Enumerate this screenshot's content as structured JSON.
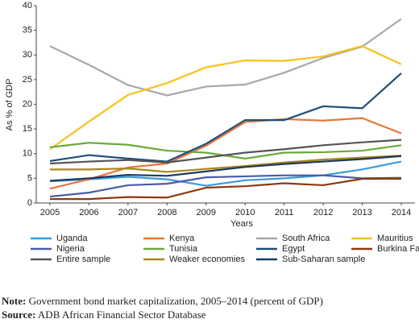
{
  "chart_data": {
    "type": "line",
    "x_label": "Years",
    "y_label": "As  % of GDP",
    "categories": [
      "2005",
      "2006",
      "2007",
      "2008",
      "2009",
      "2010",
      "2011",
      "2012",
      "2013",
      "2014"
    ],
    "ylim": [
      0,
      40
    ],
    "yticks": [
      0,
      5,
      10,
      15,
      20,
      25,
      30,
      35,
      40
    ],
    "grid": false,
    "series": [
      {
        "name": "Uganda",
        "color": "#3a9ad9",
        "values": [
          4.4,
          4.8,
          5.3,
          4.8,
          3.5,
          4.6,
          5.0,
          5.6,
          6.8,
          8.4
        ]
      },
      {
        "name": "Kenya",
        "color": "#e8773a",
        "values": [
          2.9,
          4.8,
          7.2,
          8.0,
          11.6,
          16.4,
          17.0,
          16.7,
          17.2,
          14.1
        ]
      },
      {
        "name": "South Africa",
        "color": "#a8a8a8",
        "values": [
          31.8,
          28.0,
          23.9,
          21.8,
          23.6,
          24.0,
          26.4,
          29.4,
          31.7,
          37.3
        ]
      },
      {
        "name": "Mauritius",
        "color": "#f7c21a",
        "values": [
          10.9,
          16.5,
          21.9,
          24.3,
          27.5,
          28.9,
          28.8,
          29.7,
          31.8,
          28.1
        ]
      },
      {
        "name": "Nigeria",
        "color": "#4a5aa8",
        "values": [
          1.3,
          2.1,
          3.6,
          3.9,
          5.2,
          5.4,
          5.6,
          5.6,
          5.0,
          5.1
        ]
      },
      {
        "name": "Tunisia",
        "color": "#6aaa3a",
        "values": [
          11.3,
          12.2,
          11.8,
          10.6,
          10.2,
          9.0,
          10.2,
          10.3,
          10.6,
          11.7
        ]
      },
      {
        "name": "Egypt",
        "color": "#1f4e79",
        "values": [
          8.5,
          9.7,
          9.0,
          8.4,
          12.0,
          16.8,
          16.8,
          19.6,
          19.2,
          26.3
        ]
      },
      {
        "name": "Burkina Faso",
        "color": "#8b3a0f",
        "values": [
          0.8,
          0.8,
          1.2,
          1.1,
          3.1,
          3.4,
          4.0,
          3.6,
          4.9,
          4.9
        ]
      },
      {
        "name": "Entire sample",
        "color": "#555555",
        "values": [
          8.0,
          8.4,
          8.7,
          8.2,
          9.2,
          10.2,
          10.9,
          11.7,
          12.3,
          12.8
        ]
      },
      {
        "name": "Weaker economies",
        "color": "#a8861a",
        "values": [
          6.8,
          6.8,
          7.0,
          6.3,
          6.9,
          7.5,
          8.2,
          8.8,
          9.2,
          9.6
        ]
      },
      {
        "name": "Sub-Saharan sample",
        "color": "#1b3a5c",
        "values": [
          4.5,
          5.0,
          5.7,
          5.5,
          6.4,
          7.3,
          7.9,
          8.4,
          8.9,
          9.5
        ]
      }
    ]
  },
  "notes": {
    "note_label": "Note:",
    "note": "Government bond market capitalization, 2005–2014 (percent of GDP)",
    "source_label": "Source:",
    "source": "ADB African Financial Sector Database"
  }
}
